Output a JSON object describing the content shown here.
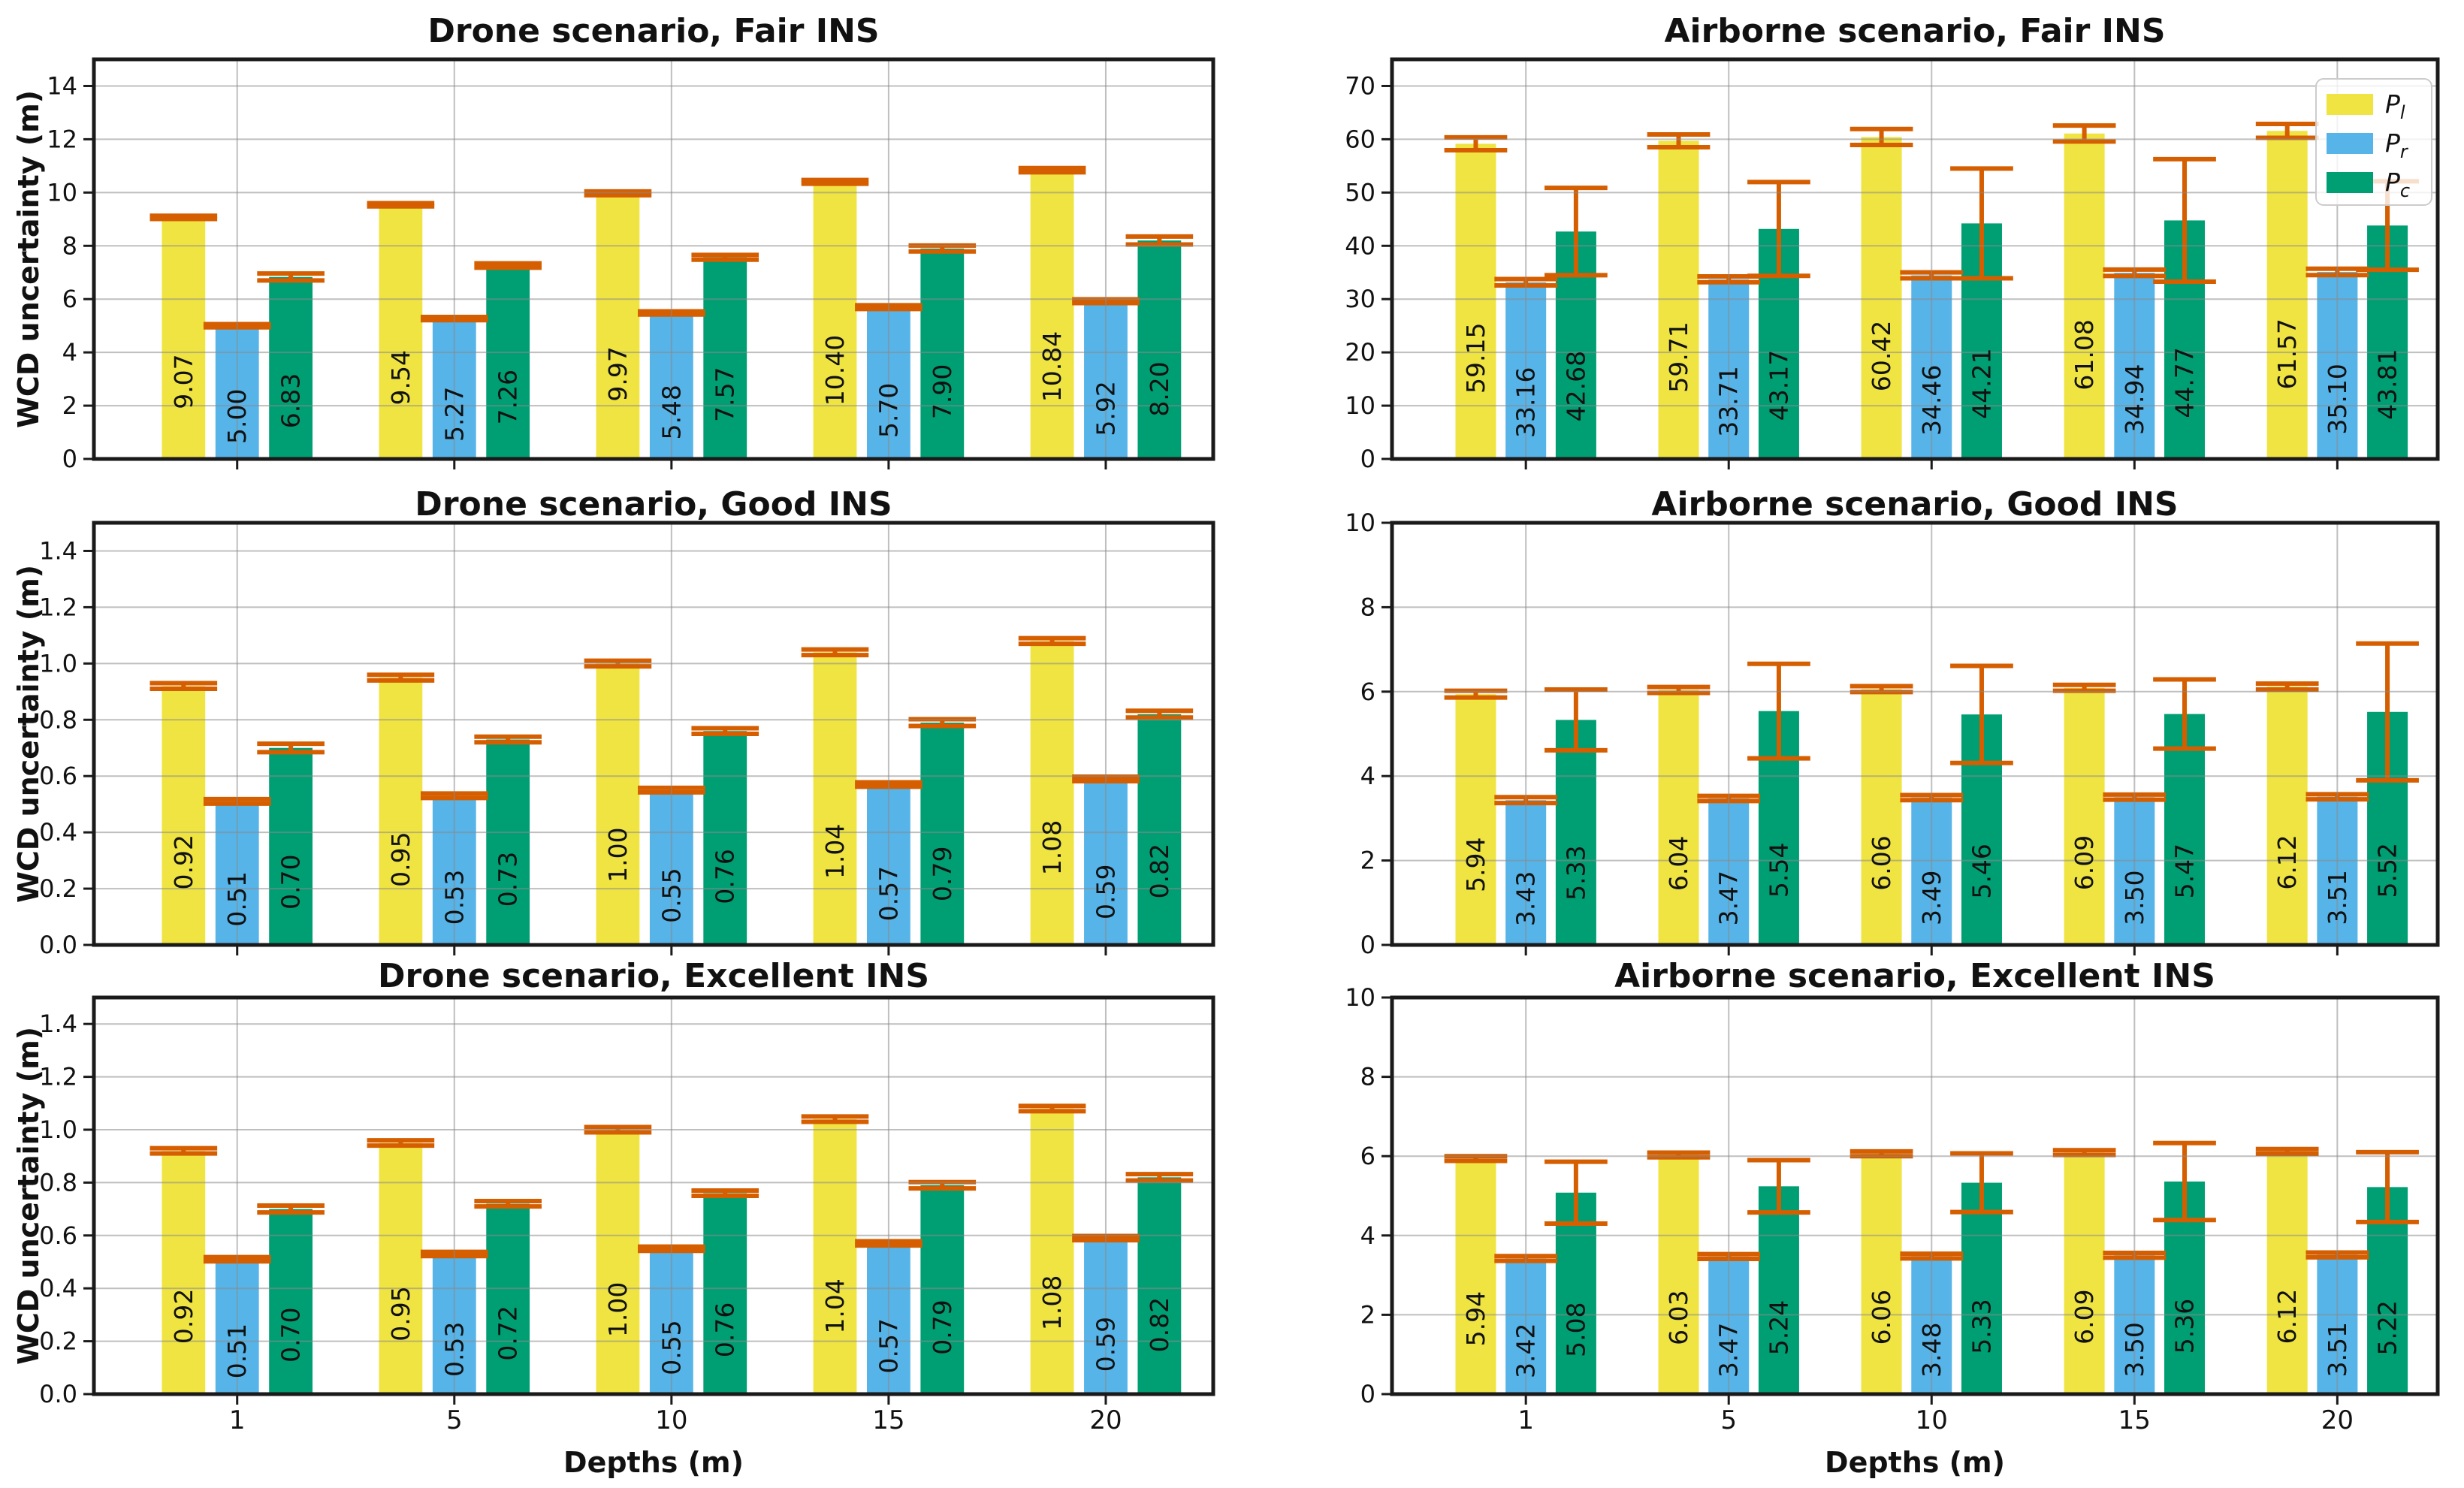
{
  "figure": {
    "ylabel": "WCD uncertainty (m)",
    "xlabel": "Depths (m)",
    "categories": [
      "1",
      "5",
      "10",
      "15",
      "20"
    ],
    "bar_colors": [
      "#F0E442",
      "#56B4E9",
      "#009E73"
    ],
    "error_color": "#D55E00",
    "grid_color": "#8a8a8a",
    "spine_color": "#1a1a1a",
    "legend": {
      "entries": [
        {
          "main": "P",
          "sub": "l",
          "color": "#F0E442"
        },
        {
          "main": "P",
          "sub": "r",
          "color": "#56B4E9"
        },
        {
          "main": "P",
          "sub": "c",
          "color": "#009E73"
        }
      ]
    }
  },
  "chart_data": [
    {
      "id": "drone-fair",
      "type": "bar",
      "title": "Drone scenario, Fair INS",
      "ylim": [
        0,
        15
      ],
      "yticks": [
        0,
        2,
        4,
        6,
        8,
        10,
        12,
        14
      ],
      "ytick_decimals": 0,
      "grid": true,
      "legend_position": null,
      "series": [
        {
          "name": "P_l",
          "values": [
            9.07,
            9.54,
            9.97,
            10.4,
            10.84
          ],
          "errors": [
            0.06,
            0.06,
            0.07,
            0.07,
            0.08
          ]
        },
        {
          "name": "P_r",
          "values": [
            5.0,
            5.27,
            5.48,
            5.7,
            5.92
          ],
          "errors": [
            0.06,
            0.06,
            0.06,
            0.07,
            0.07
          ]
        },
        {
          "name": "P_c",
          "values": [
            6.83,
            7.26,
            7.57,
            7.9,
            8.2
          ],
          "errors": [
            0.13,
            0.08,
            0.09,
            0.11,
            0.15
          ]
        }
      ]
    },
    {
      "id": "airborne-fair",
      "type": "bar",
      "title": "Airborne scenario, Fair INS",
      "ylim": [
        0,
        75
      ],
      "yticks": [
        0,
        10,
        20,
        30,
        40,
        50,
        60,
        70
      ],
      "ytick_decimals": 0,
      "grid": true,
      "legend_position": "upper-right",
      "series": [
        {
          "name": "P_l",
          "values": [
            59.15,
            59.71,
            60.42,
            61.08,
            61.57
          ],
          "errors": [
            1.2,
            1.2,
            1.5,
            1.5,
            1.3
          ]
        },
        {
          "name": "P_r",
          "values": [
            33.16,
            33.71,
            34.46,
            34.94,
            35.1
          ],
          "errors": [
            0.6,
            0.55,
            0.55,
            0.6,
            0.6
          ]
        },
        {
          "name": "P_c",
          "values": [
            42.68,
            43.17,
            44.21,
            44.77,
            43.81
          ],
          "errors": [
            8.2,
            8.8,
            10.3,
            11.5,
            8.3
          ]
        }
      ]
    },
    {
      "id": "drone-good",
      "type": "bar",
      "title": "Drone scenario, Good INS",
      "ylim": [
        0,
        1.5
      ],
      "yticks": [
        0.0,
        0.2,
        0.4,
        0.6,
        0.8,
        1.0,
        1.2,
        1.4
      ],
      "ytick_decimals": 1,
      "grid": true,
      "legend_position": null,
      "series": [
        {
          "name": "P_l",
          "values": [
            0.92,
            0.95,
            1.0,
            1.04,
            1.08
          ],
          "errors": [
            0.01,
            0.01,
            0.01,
            0.01,
            0.01
          ]
        },
        {
          "name": "P_r",
          "values": [
            0.51,
            0.53,
            0.55,
            0.57,
            0.59
          ],
          "errors": [
            0.008,
            0.008,
            0.008,
            0.008,
            0.008
          ]
        },
        {
          "name": "P_c",
          "values": [
            0.7,
            0.73,
            0.76,
            0.79,
            0.82
          ],
          "errors": [
            0.015,
            0.01,
            0.01,
            0.012,
            0.012
          ]
        }
      ]
    },
    {
      "id": "airborne-good",
      "type": "bar",
      "title": "Airborne scenario, Good INS",
      "ylim": [
        0,
        10
      ],
      "yticks": [
        0,
        2,
        4,
        6,
        8,
        10
      ],
      "ytick_decimals": 0,
      "grid": true,
      "legend_position": null,
      "series": [
        {
          "name": "P_l",
          "values": [
            5.94,
            6.04,
            6.06,
            6.09,
            6.12
          ],
          "errors": [
            0.08,
            0.07,
            0.07,
            0.07,
            0.07
          ]
        },
        {
          "name": "P_r",
          "values": [
            3.43,
            3.47,
            3.49,
            3.5,
            3.51
          ],
          "errors": [
            0.07,
            0.06,
            0.06,
            0.06,
            0.06
          ]
        },
        {
          "name": "P_c",
          "values": [
            5.33,
            5.54,
            5.46,
            5.47,
            5.52
          ],
          "errors": [
            0.72,
            1.12,
            1.15,
            0.82,
            1.62
          ]
        }
      ]
    },
    {
      "id": "drone-excellent",
      "type": "bar",
      "title": "Drone scenario, Excellent INS",
      "ylim": [
        0,
        1.5
      ],
      "yticks": [
        0.0,
        0.2,
        0.4,
        0.6,
        0.8,
        1.0,
        1.2,
        1.4
      ],
      "ytick_decimals": 1,
      "grid": true,
      "legend_position": null,
      "series": [
        {
          "name": "P_l",
          "values": [
            0.92,
            0.95,
            1.0,
            1.04,
            1.08
          ],
          "errors": [
            0.01,
            0.01,
            0.01,
            0.01,
            0.01
          ]
        },
        {
          "name": "P_r",
          "values": [
            0.51,
            0.53,
            0.55,
            0.57,
            0.59
          ],
          "errors": [
            0.008,
            0.008,
            0.008,
            0.008,
            0.008
          ]
        },
        {
          "name": "P_c",
          "values": [
            0.7,
            0.72,
            0.76,
            0.79,
            0.82
          ],
          "errors": [
            0.013,
            0.01,
            0.01,
            0.012,
            0.012
          ]
        }
      ]
    },
    {
      "id": "airborne-excellent",
      "type": "bar",
      "title": "Airborne scenario, Excellent INS",
      "ylim": [
        0,
        10
      ],
      "yticks": [
        0,
        2,
        4,
        6,
        8,
        10
      ],
      "ytick_decimals": 0,
      "grid": true,
      "legend_position": null,
      "series": [
        {
          "name": "P_l",
          "values": [
            5.94,
            6.03,
            6.06,
            6.09,
            6.12
          ],
          "errors": [
            0.06,
            0.06,
            0.06,
            0.06,
            0.06
          ]
        },
        {
          "name": "P_r",
          "values": [
            3.42,
            3.47,
            3.48,
            3.5,
            3.51
          ],
          "errors": [
            0.06,
            0.06,
            0.06,
            0.06,
            0.06
          ]
        },
        {
          "name": "P_c",
          "values": [
            5.08,
            5.24,
            5.33,
            5.36,
            5.22
          ],
          "errors": [
            0.78,
            0.66,
            0.74,
            0.97,
            0.88
          ]
        }
      ]
    }
  ]
}
